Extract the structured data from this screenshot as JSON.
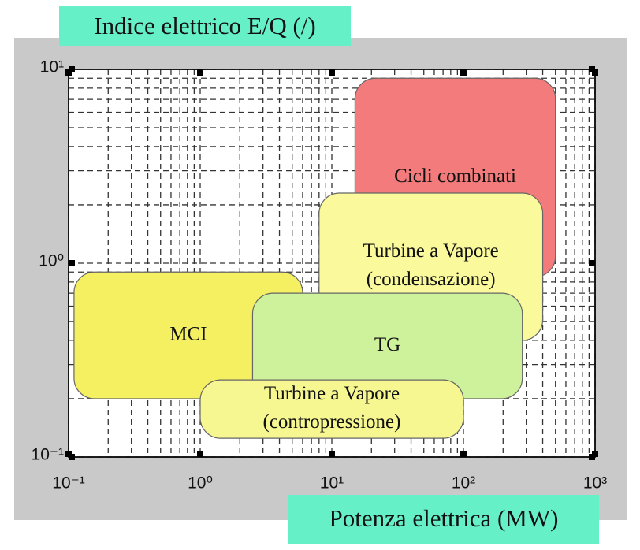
{
  "chart_data": {
    "type": "region",
    "y_label": "Indice elettrico E/Q (/)",
    "x_label": "Potenza elettrica (MW)",
    "log_x": true,
    "log_y": true,
    "grid": true,
    "minor_grid": true,
    "xlim": [
      0.1,
      1000
    ],
    "ylim": [
      0.1,
      10
    ],
    "xticks": [
      {
        "value": 0.1,
        "label": "10⁻¹"
      },
      {
        "value": 1,
        "label": "10⁰"
      },
      {
        "value": 10,
        "label": "10¹"
      },
      {
        "value": 100,
        "label": "10²"
      },
      {
        "value": 1000,
        "label": "10³"
      }
    ],
    "yticks": [
      {
        "value": 0.1,
        "label": "10⁻¹"
      },
      {
        "value": 1,
        "label": "10⁰"
      },
      {
        "value": 10,
        "label": "10¹"
      }
    ],
    "regions": [
      {
        "label": [
          "Cicli combinati"
        ],
        "xrange": [
          15,
          500
        ],
        "yrange": [
          0.85,
          9
        ],
        "color": "#f47b7b"
      },
      {
        "label": [
          "Turbine a Vapore",
          "(condensazione)"
        ],
        "xrange": [
          8,
          400
        ],
        "yrange": [
          0.4,
          2.3
        ],
        "color": "#fafa9c"
      },
      {
        "label": [
          "MCI"
        ],
        "xrange": [
          0.11,
          6
        ],
        "yrange": [
          0.2,
          0.9
        ],
        "color": "#f5ef62"
      },
      {
        "label": [
          "TG"
        ],
        "xrange": [
          2.5,
          280
        ],
        "yrange": [
          0.2,
          0.7
        ],
        "color": "#cdf29b"
      },
      {
        "label": [
          "Turbine a Vapore",
          "(contropressione)"
        ],
        "xrange": [
          1,
          100
        ],
        "yrange": [
          0.125,
          0.25
        ],
        "color": "#f7f792"
      }
    ]
  }
}
